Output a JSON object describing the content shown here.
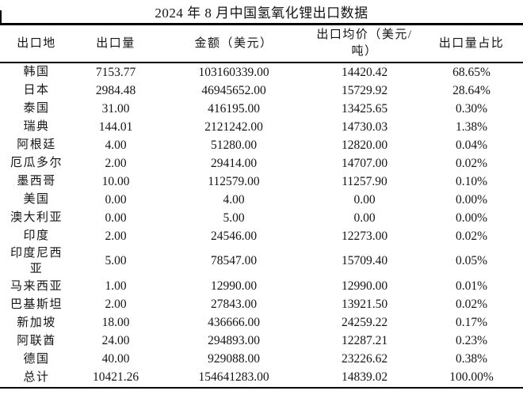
{
  "title": "2024 年 8 月中国氢氧化锂出口数据",
  "colors": {
    "text": "#141414",
    "rule": "#000000",
    "background": "#ffffff"
  },
  "table": {
    "columns": [
      {
        "label": "出口地"
      },
      {
        "label": "出口量"
      },
      {
        "label": "金额（美元）"
      },
      {
        "label": "出口均价（美元/吨）",
        "line1": "出口均价（美元/",
        "line2": "吨）"
      },
      {
        "label": "出口量占比"
      }
    ],
    "rows": [
      {
        "destination": "韩国",
        "volume": "7153.77",
        "amount": "103160339.00",
        "avg_price": "14420.42",
        "share": "68.65%"
      },
      {
        "destination": "日本",
        "volume": "2984.48",
        "amount": "46945652.00",
        "avg_price": "15729.92",
        "share": "28.64%"
      },
      {
        "destination": "泰国",
        "volume": "31.00",
        "amount": "416195.00",
        "avg_price": "13425.65",
        "share": "0.30%"
      },
      {
        "destination": "瑞典",
        "volume": "144.01",
        "amount": "2121242.00",
        "avg_price": "14730.03",
        "share": "1.38%"
      },
      {
        "destination": "阿根廷",
        "volume": "4.00",
        "amount": "51280.00",
        "avg_price": "12820.00",
        "share": "0.04%"
      },
      {
        "destination": "厄瓜多尔",
        "volume": "2.00",
        "amount": "29414.00",
        "avg_price": "14707.00",
        "share": "0.02%"
      },
      {
        "destination": "墨西哥",
        "volume": "10.00",
        "amount": "112579.00",
        "avg_price": "11257.90",
        "share": "0.10%"
      },
      {
        "destination": "美国",
        "volume": "0.00",
        "amount": "4.00",
        "avg_price": "0.00",
        "share": "0.00%"
      },
      {
        "destination": "澳大利亚",
        "volume": "0.00",
        "amount": "5.00",
        "avg_price": "0.00",
        "share": "0.00%"
      },
      {
        "destination": "印度",
        "volume": "2.00",
        "amount": "24546.00",
        "avg_price": "12273.00",
        "share": "0.02%"
      },
      {
        "destination": "印度尼西亚",
        "volume": "5.00",
        "amount": "78547.00",
        "avg_price": "15709.40",
        "share": "0.05%"
      },
      {
        "destination": "马来西亚",
        "volume": "1.00",
        "amount": "12990.00",
        "avg_price": "12990.00",
        "share": "0.01%"
      },
      {
        "destination": "巴基斯坦",
        "volume": "2.00",
        "amount": "27843.00",
        "avg_price": "13921.50",
        "share": "0.02%"
      },
      {
        "destination": "新加坡",
        "volume": "18.00",
        "amount": "436666.00",
        "avg_price": "24259.22",
        "share": "0.17%"
      },
      {
        "destination": "阿联酋",
        "volume": "24.00",
        "amount": "294893.00",
        "avg_price": "12287.21",
        "share": "0.23%"
      },
      {
        "destination": "德国",
        "volume": "40.00",
        "amount": "929088.00",
        "avg_price": "23226.62",
        "share": "0.38%"
      },
      {
        "destination": "总计",
        "volume": "10421.26",
        "amount": "154641283.00",
        "avg_price": "14839.02",
        "share": "100.00%",
        "total": true
      }
    ]
  }
}
